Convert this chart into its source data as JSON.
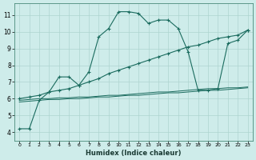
{
  "xlabel": "Humidex (Indice chaleur)",
  "background_color": "#ceecea",
  "line_color": "#1a6b5e",
  "grid_color": "#aed4cf",
  "xlim": [
    -0.5,
    23.5
  ],
  "ylim": [
    3.5,
    11.7
  ],
  "xticks": [
    0,
    1,
    2,
    3,
    4,
    5,
    6,
    7,
    8,
    9,
    10,
    11,
    12,
    13,
    14,
    15,
    16,
    17,
    18,
    19,
    20,
    21,
    22,
    23
  ],
  "yticks": [
    4,
    5,
    6,
    7,
    8,
    9,
    10,
    11
  ],
  "series": [
    {
      "x": [
        0,
        1,
        2,
        3,
        4,
        5,
        6,
        7,
        8,
        9,
        10,
        11,
        12,
        13,
        14,
        15,
        16,
        17,
        18,
        19,
        20,
        21,
        22,
        23
      ],
      "y": [
        4.2,
        4.2,
        5.9,
        6.4,
        7.3,
        7.3,
        6.8,
        7.6,
        9.7,
        10.2,
        11.2,
        11.2,
        11.1,
        10.5,
        10.7,
        10.7,
        10.2,
        8.8,
        6.5,
        6.5,
        6.6,
        9.3,
        9.5,
        10.1
      ],
      "marker": "+"
    },
    {
      "x": [
        0,
        1,
        2,
        3,
        4,
        5,
        6,
        7,
        8,
        9,
        10,
        11,
        12,
        13,
        14,
        15,
        16,
        17,
        18,
        19,
        20,
        21,
        22,
        23
      ],
      "y": [
        6.0,
        6.1,
        6.2,
        6.4,
        6.5,
        6.6,
        6.8,
        7.0,
        7.2,
        7.5,
        7.7,
        7.9,
        8.1,
        8.3,
        8.5,
        8.7,
        8.9,
        9.1,
        9.2,
        9.4,
        9.6,
        9.7,
        9.8,
        10.1
      ],
      "marker": "+"
    },
    {
      "x": [
        0,
        1,
        2,
        3,
        4,
        5,
        6,
        7,
        8,
        9,
        10,
        11,
        12,
        13,
        14,
        15,
        16,
        17,
        18,
        19,
        20,
        21,
        22,
        23
      ],
      "y": [
        5.9,
        5.95,
        6.0,
        6.0,
        6.05,
        6.05,
        6.1,
        6.1,
        6.15,
        6.2,
        6.2,
        6.25,
        6.3,
        6.35,
        6.4,
        6.4,
        6.45,
        6.5,
        6.55,
        6.6,
        6.6,
        6.65,
        6.65,
        6.7
      ],
      "marker": null
    },
    {
      "x": [
        0,
        1,
        2,
        3,
        4,
        5,
        6,
        7,
        8,
        9,
        10,
        11,
        12,
        13,
        14,
        15,
        16,
        17,
        18,
        19,
        20,
        21,
        22,
        23
      ],
      "y": [
        5.8,
        5.85,
        5.9,
        5.95,
        5.95,
        6.0,
        6.0,
        6.05,
        6.1,
        6.1,
        6.15,
        6.2,
        6.2,
        6.25,
        6.3,
        6.35,
        6.35,
        6.4,
        6.45,
        6.5,
        6.5,
        6.55,
        6.6,
        6.65
      ],
      "marker": null
    }
  ]
}
